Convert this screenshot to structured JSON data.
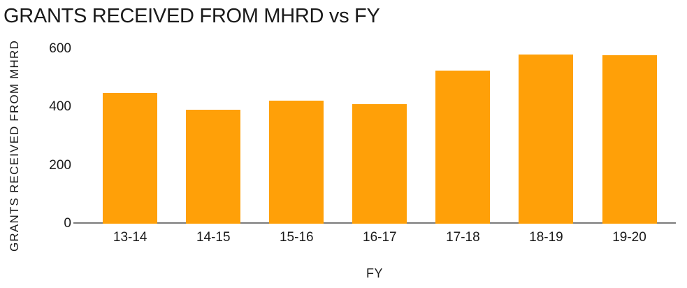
{
  "chart_data": {
    "type": "bar",
    "title": "GRANTS RECEIVED FROM MHRD vs FY",
    "xlabel": "FY",
    "ylabel": "GRANTS RECEIVED FROM MHRD",
    "categories": [
      "13-14",
      "14-15",
      "15-16",
      "16-17",
      "17-18",
      "18-19",
      "19-20"
    ],
    "values": [
      448,
      391,
      422,
      410,
      526,
      582,
      578
    ],
    "ylim": [
      0,
      600
    ],
    "yticks": [
      0,
      200,
      400,
      600
    ],
    "grid": false,
    "legend": false,
    "bar_color": "#FFA008",
    "axis_line_color": "#7b7b7b",
    "text_color": "#1a1a1a"
  }
}
